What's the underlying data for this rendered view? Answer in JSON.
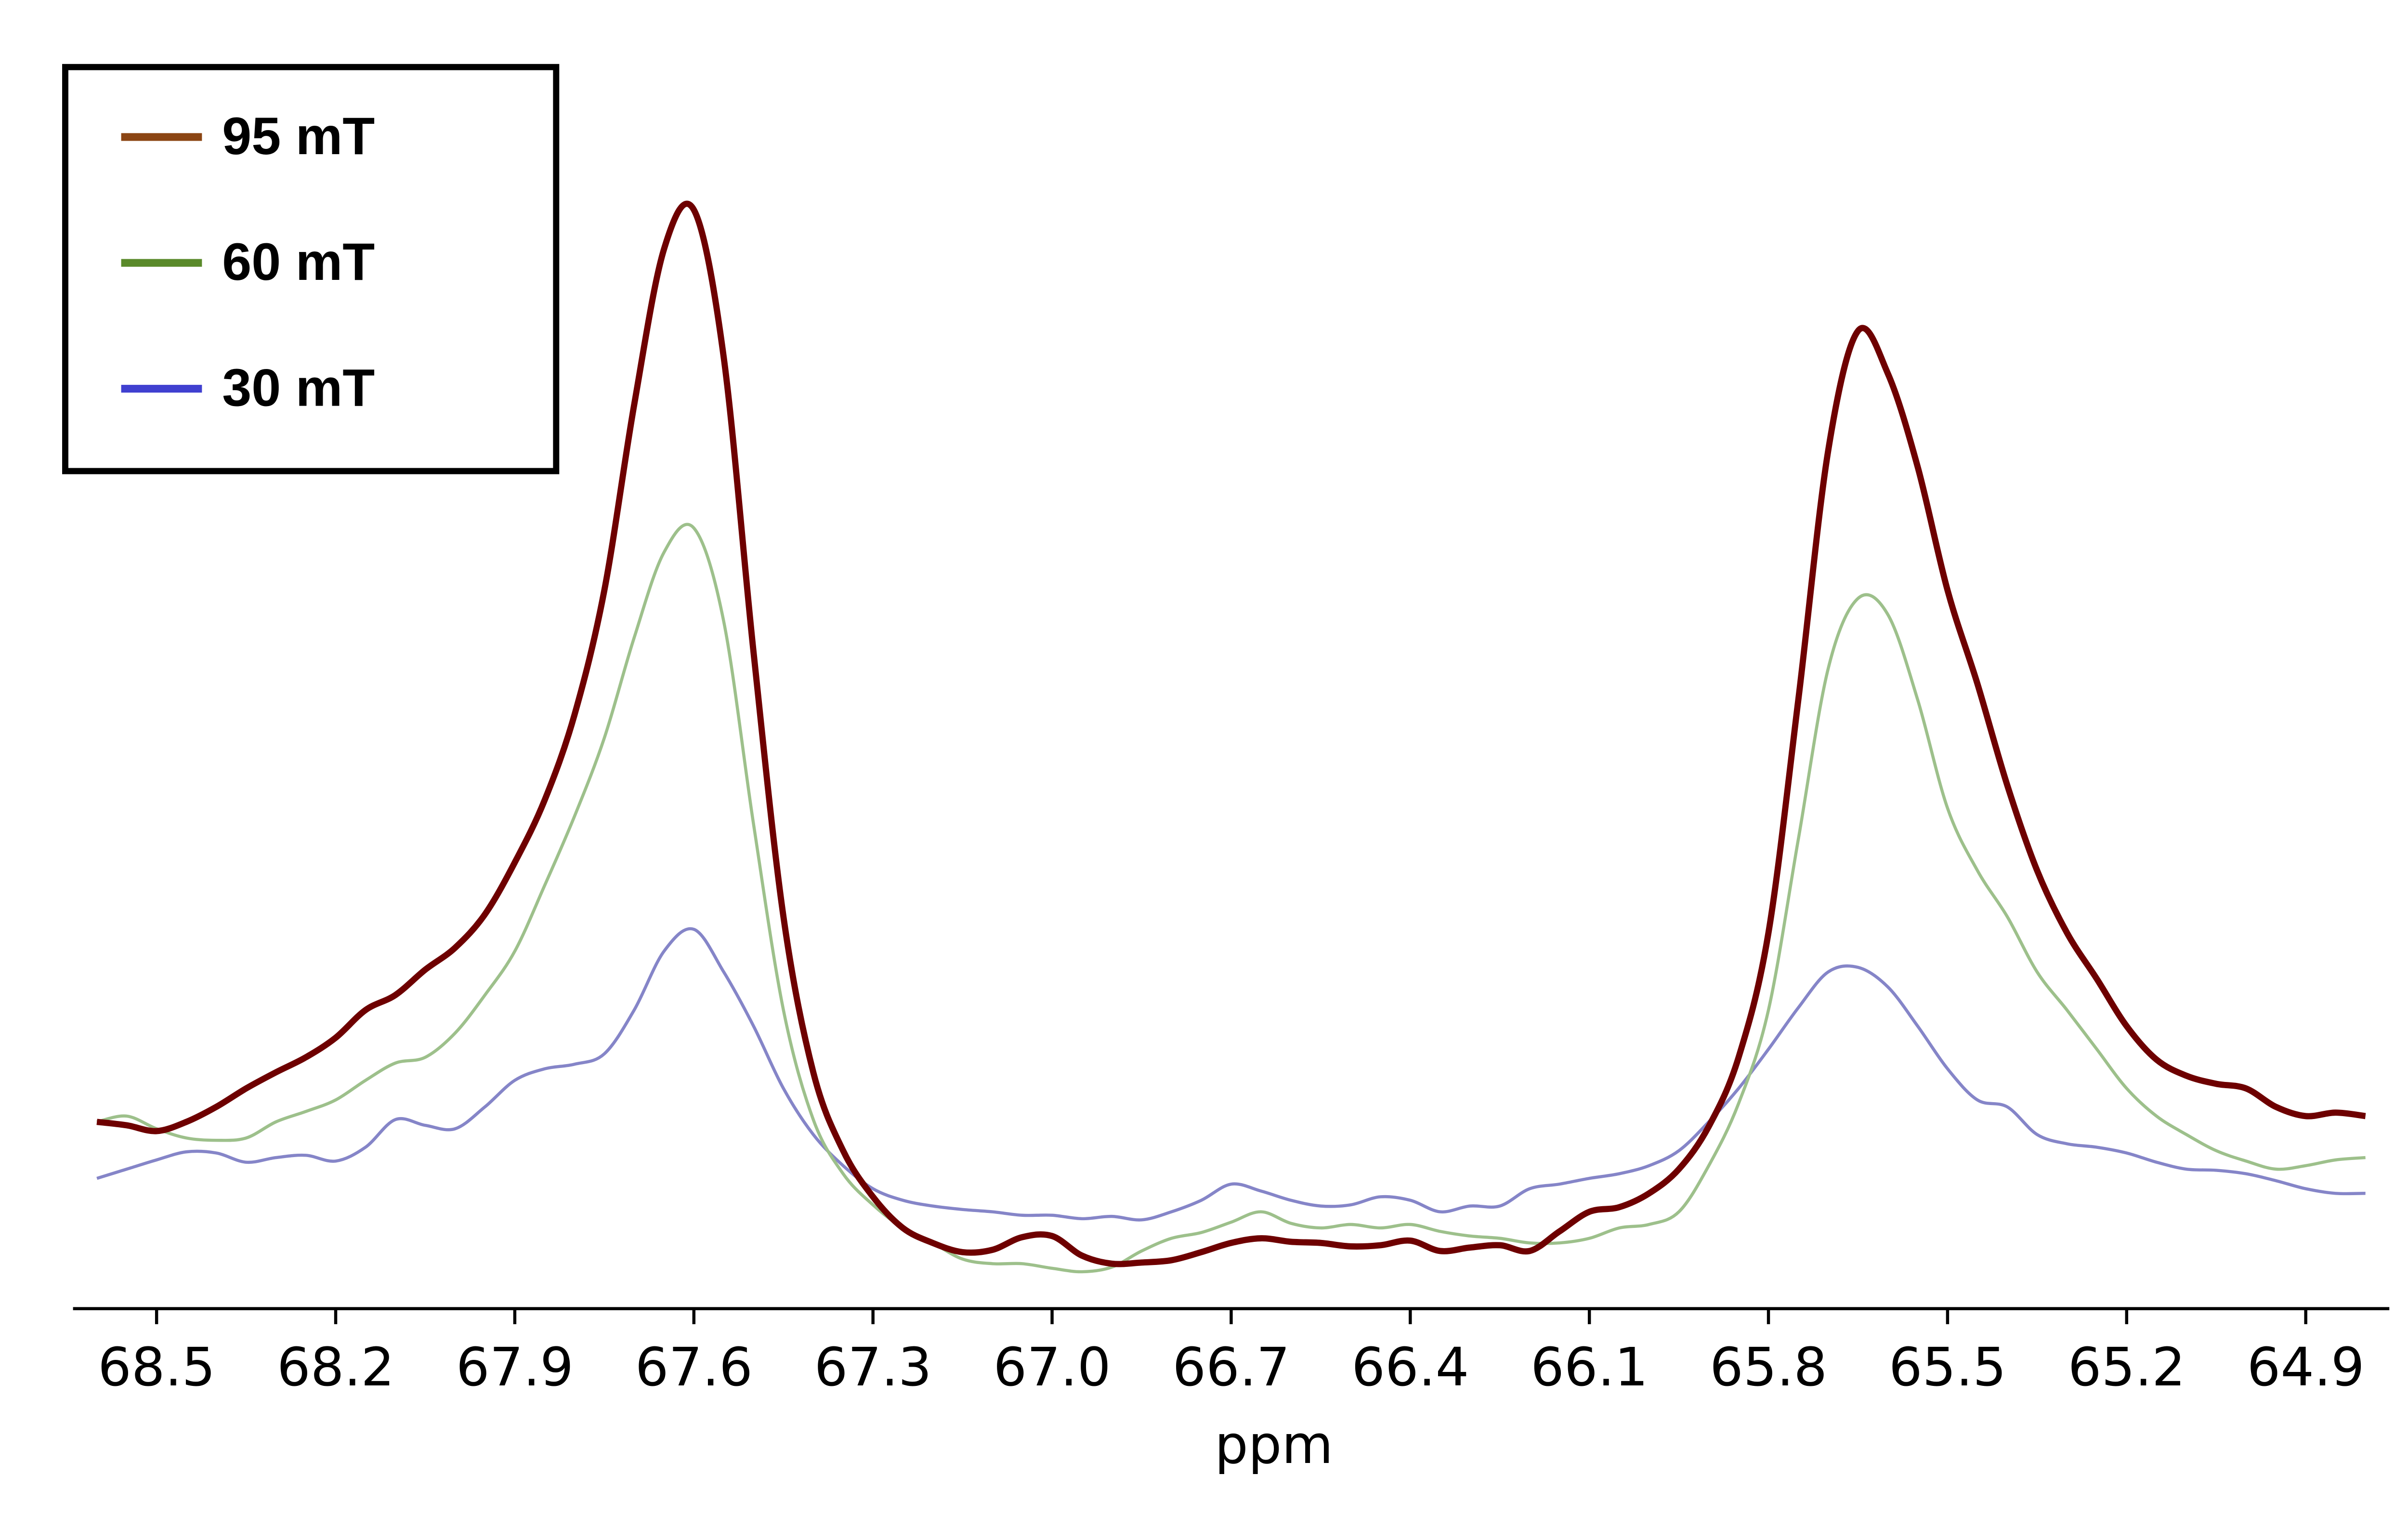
{
  "chart_data": {
    "type": "line",
    "xlabel": "ppm",
    "xlim": [
      68.64,
      64.76
    ],
    "xticks": [
      68.5,
      68.2,
      67.9,
      67.6,
      67.3,
      {
        "value": 67.0,
        "label": "67.0"
      },
      66.7,
      66.4,
      66.1,
      65.8,
      {
        "value": 65.5,
        "label": "65.5"
      },
      65.2,
      64.9
    ],
    "ylim": [
      0,
      100
    ],
    "legend": "upper left",
    "x": [
      68.6,
      68.55,
      68.5,
      68.45,
      68.4,
      68.35,
      68.3,
      68.25,
      68.2,
      68.15,
      68.1,
      68.05,
      68.0,
      67.95,
      67.9,
      67.85,
      67.8,
      67.75,
      67.7,
      67.65,
      67.6,
      67.55,
      67.5,
      67.45,
      67.4,
      67.35,
      67.3,
      67.25,
      67.2,
      67.15,
      67.1,
      67.05,
      67.0,
      66.95,
      66.9,
      66.85,
      66.8,
      66.75,
      66.7,
      66.65,
      66.6,
      66.55,
      66.5,
      66.45,
      66.4,
      66.35,
      66.3,
      66.25,
      66.2,
      66.15,
      66.1,
      66.05,
      66.0,
      65.95,
      65.9,
      65.85,
      65.8,
      65.75,
      65.7,
      65.65,
      65.6,
      65.55,
      65.5,
      65.45,
      65.4,
      65.35,
      65.3,
      65.25,
      65.2,
      65.15,
      65.1,
      65.05,
      65.0,
      64.95,
      64.9,
      64.85,
      64.8
    ],
    "series": [
      {
        "name": "95 mT",
        "color": "#6e0000",
        "legend_color": "#8b4513",
        "linewidth": 4,
        "values": [
          16.2,
          15.9,
          15.4,
          16.2,
          17.5,
          19.1,
          20.5,
          21.8,
          23.5,
          25.9,
          27.2,
          29.4,
          31.3,
          34.2,
          38.7,
          44.1,
          51.5,
          62.3,
          78.4,
          91.9,
          95.3,
          82.5,
          56.9,
          34.0,
          20.5,
          13.7,
          9.7,
          7.0,
          5.7,
          4.9,
          5.1,
          6.2,
          6.3,
          4.6,
          3.9,
          4.0,
          4.2,
          4.9,
          5.7,
          6.1,
          5.8,
          5.7,
          5.4,
          5.5,
          5.9,
          5.0,
          5.3,
          5.5,
          5.0,
          6.7,
          8.4,
          8.8,
          10.0,
          12.1,
          15.8,
          21.8,
          32.6,
          52.8,
          74.4,
          84.8,
          81.1,
          73.0,
          62.3,
          54.2,
          45.4,
          38.0,
          32.6,
          28.6,
          24.5,
          21.6,
          20.2,
          19.5,
          19.1,
          17.5,
          16.7,
          17.0,
          16.7
        ]
      },
      {
        "name": "60 mT",
        "color": "#9dc08b",
        "legend_color": "#5a8a2a",
        "linewidth": 2,
        "values": [
          16.2,
          16.7,
          15.6,
          14.8,
          14.6,
          14.8,
          16.2,
          17.1,
          18.1,
          19.8,
          21.3,
          21.8,
          23.9,
          27.2,
          31.0,
          36.7,
          42.7,
          49.5,
          58.2,
          65.6,
          67.7,
          59.6,
          42.0,
          25.9,
          16.4,
          11.7,
          9.0,
          7.0,
          5.7,
          4.3,
          3.9,
          3.9,
          3.5,
          3.2,
          3.6,
          5.0,
          6.1,
          6.6,
          7.5,
          8.4,
          7.4,
          7.0,
          7.3,
          7.0,
          7.3,
          6.7,
          6.3,
          6.1,
          5.7,
          5.7,
          6.1,
          7.0,
          7.3,
          8.4,
          12.4,
          17.8,
          25.9,
          40.7,
          55.5,
          61.6,
          60.2,
          52.8,
          43.4,
          38.0,
          34.0,
          29.2,
          25.9,
          22.5,
          19.1,
          16.7,
          15.1,
          13.7,
          12.8,
          12.1,
          12.4,
          12.9,
          13.1
        ]
      },
      {
        "name": "30 mT",
        "color": "#8585c8",
        "legend_color": "#4040d0",
        "linewidth": 2,
        "values": [
          11.3,
          12.1,
          12.9,
          13.6,
          13.5,
          12.7,
          13.1,
          13.3,
          12.8,
          14.0,
          16.4,
          15.9,
          15.6,
          17.5,
          19.8,
          20.8,
          21.2,
          22.1,
          25.9,
          31.0,
          32.9,
          29.2,
          24.5,
          19.1,
          15.1,
          12.4,
          10.4,
          9.4,
          8.9,
          8.6,
          8.4,
          8.1,
          8.1,
          7.8,
          8.0,
          7.7,
          8.4,
          9.4,
          10.8,
          10.2,
          9.4,
          8.9,
          9.0,
          9.7,
          9.4,
          8.4,
          8.9,
          8.9,
          10.4,
          10.8,
          11.3,
          11.7,
          12.4,
          13.7,
          16.2,
          19.1,
          22.5,
          26.1,
          29.2,
          29.6,
          27.9,
          24.5,
          20.8,
          18.1,
          17.5,
          15.1,
          14.3,
          14.0,
          13.5,
          12.7,
          12.1,
          12.0,
          11.7,
          11.1,
          10.4,
          10.0,
          10.0
        ]
      }
    ]
  }
}
